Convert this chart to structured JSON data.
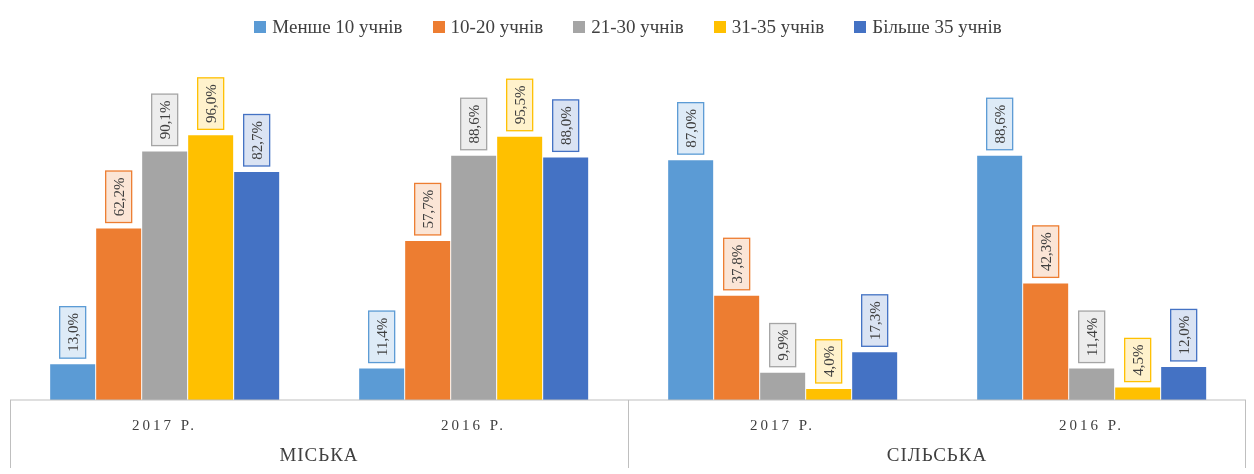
{
  "chart_data": {
    "type": "bar",
    "categories": [
      "2017 Р.",
      "2016 Р.",
      "2017 Р.",
      "2016 Р."
    ],
    "series": [
      {
        "name": "Менше 10 учнів",
        "color": "#5b9bd5",
        "values": [
          13.0,
          11.4,
          87.0,
          88.6
        ],
        "value_labels": [
          "13,0%",
          "11,4%",
          "87,0%",
          "88,6%"
        ]
      },
      {
        "name": "10-20 учнів",
        "color": "#ed7d31",
        "values": [
          62.2,
          57.7,
          37.8,
          42.3
        ],
        "value_labels": [
          "62,2%",
          "57,7%",
          "37,8%",
          "42,3%"
        ]
      },
      {
        "name": "21-30 учнів",
        "color": "#a5a5a5",
        "values": [
          90.1,
          88.6,
          9.9,
          11.4
        ],
        "value_labels": [
          "90,1%",
          "88,6%",
          "9,9%",
          "11,4%"
        ]
      },
      {
        "name": "31-35 учнів",
        "color": "#ffc000",
        "values": [
          96.0,
          95.5,
          4.0,
          4.5
        ],
        "value_labels": [
          "96,0%",
          "95,5%",
          "4,0%",
          "4,5%"
        ]
      },
      {
        "name": "Більше 35 учнів",
        "color": "#4472c4",
        "values": [
          82.7,
          88.0,
          17.3,
          12.0
        ],
        "value_labels": [
          "82,7%",
          "88,0%",
          "17,3%",
          "12,0%"
        ]
      }
    ],
    "annotations": [
      "МІСЬКА",
      "СІЛЬСЬКА"
    ],
    "legend": "top",
    "grid": false
  }
}
